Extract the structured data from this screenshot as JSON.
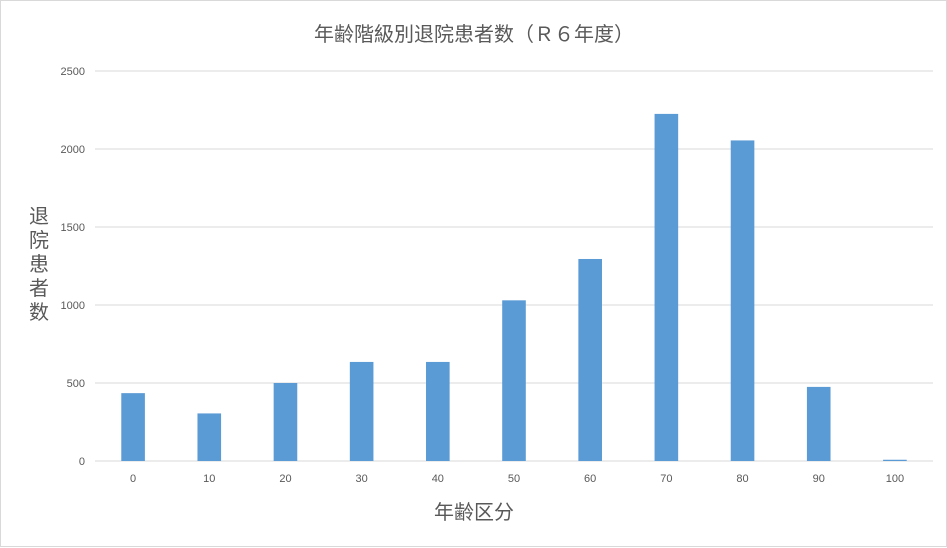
{
  "chart_data": {
    "type": "bar",
    "title": "年齢階級別退院患者数（Ｒ６年度）",
    "xlabel": "年齢区分",
    "ylabel": "退院患者数",
    "categories": [
      "0",
      "10",
      "20",
      "30",
      "40",
      "50",
      "60",
      "70",
      "80",
      "90",
      "100"
    ],
    "values": [
      435,
      305,
      500,
      635,
      635,
      1030,
      1295,
      2225,
      2055,
      475,
      8
    ],
    "ylim": [
      0,
      2500
    ],
    "yticks": [
      "0",
      "500",
      "1000",
      "1500",
      "2000",
      "2500"
    ],
    "grid": true,
    "legend": "none",
    "colors": {
      "bar": "#5b9bd5",
      "grid": "#d9d9d9",
      "text": "#595959"
    }
  }
}
